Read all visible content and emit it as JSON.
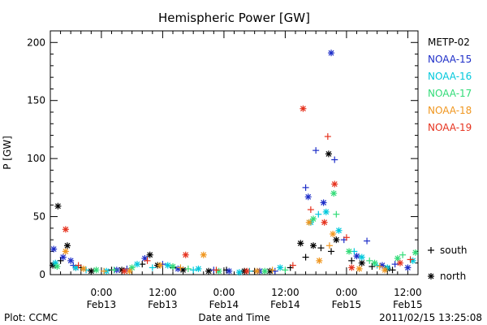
{
  "chart_data": {
    "type": "scatter",
    "title": "Hemispheric Power [GW]",
    "xlabel": "Date and Time",
    "ylabel": "P [GW]",
    "xlim": [
      "2011-02-12T14:00",
      "2011-02-15T14:00"
    ],
    "ylim": [
      0,
      210
    ],
    "yticks": [
      0,
      50,
      100,
      150,
      200
    ],
    "xticks": [
      {
        "t": "2011-02-13T00:00",
        "time": "0:00",
        "date": "Feb13"
      },
      {
        "t": "2011-02-13T12:00",
        "time": "12:00",
        "date": "Feb13"
      },
      {
        "t": "2011-02-14T00:00",
        "time": "0:00",
        "date": "Feb14"
      },
      {
        "t": "2011-02-14T12:00",
        "time": "12:00",
        "date": "Feb14"
      },
      {
        "t": "2011-02-15T00:00",
        "time": "0:00",
        "date": "Feb15"
      },
      {
        "t": "2011-02-15T12:00",
        "time": "12:00",
        "date": "Feb15"
      }
    ],
    "marker_legend": [
      {
        "symbol": "+",
        "label": "south"
      },
      {
        "symbol": "*",
        "label": "north"
      }
    ],
    "series": [
      {
        "name": "METP-02",
        "color": "#000000",
        "points": [
          [
            "2011-02-12T14:30",
            8,
            "north"
          ],
          [
            "2011-02-12T15:30",
            59,
            "north"
          ],
          [
            "2011-02-12T17:20",
            25,
            "north"
          ],
          [
            "2011-02-12T19:00",
            6,
            "north"
          ],
          [
            "2011-02-12T22:00",
            3,
            "north"
          ],
          [
            "2011-02-13T04:00",
            4,
            "north"
          ],
          [
            "2011-02-13T09:30",
            17,
            "north"
          ],
          [
            "2011-02-13T11:00",
            8,
            "north"
          ],
          [
            "2011-02-13T16:00",
            4,
            "north"
          ],
          [
            "2011-02-13T21:00",
            3,
            "north"
          ],
          [
            "2011-02-14T04:00",
            3,
            "north"
          ],
          [
            "2011-02-14T09:00",
            3,
            "north"
          ],
          [
            "2011-02-14T15:00",
            27,
            "north"
          ],
          [
            "2011-02-14T17:30",
            25,
            "north"
          ],
          [
            "2011-02-14T20:30",
            104,
            "north"
          ],
          [
            "2011-02-14T22:00",
            30,
            "north"
          ],
          [
            "2011-02-15T03:00",
            10,
            "north"
          ],
          [
            "2011-02-15T08:00",
            5,
            "north"
          ],
          [
            "2011-02-12T16:00",
            12,
            "south"
          ],
          [
            "2011-02-12T20:00",
            6,
            "south"
          ],
          [
            "2011-02-13T02:00",
            4,
            "south"
          ],
          [
            "2011-02-13T08:00",
            9,
            "south"
          ],
          [
            "2011-02-13T14:00",
            6,
            "south"
          ],
          [
            "2011-02-14T00:30",
            4,
            "south"
          ],
          [
            "2011-02-14T06:00",
            3,
            "south"
          ],
          [
            "2011-02-14T13:00",
            6,
            "south"
          ],
          [
            "2011-02-14T16:00",
            15,
            "south"
          ],
          [
            "2011-02-14T19:00",
            23,
            "south"
          ],
          [
            "2011-02-14T21:00",
            20,
            "south"
          ],
          [
            "2011-02-15T01:00",
            12,
            "south"
          ],
          [
            "2011-02-15T05:00",
            7,
            "south"
          ],
          [
            "2011-02-15T09:00",
            4,
            "south"
          ]
        ]
      },
      {
        "name": "NOAA-15",
        "color": "#1e2ec8",
        "points": [
          [
            "2011-02-12T14:40",
            22,
            "north"
          ],
          [
            "2011-02-12T16:30",
            15,
            "north"
          ],
          [
            "2011-02-12T18:00",
            12,
            "north"
          ],
          [
            "2011-02-13T03:00",
            4,
            "north"
          ],
          [
            "2011-02-13T08:30",
            14,
            "north"
          ],
          [
            "2011-02-13T15:00",
            5,
            "north"
          ],
          [
            "2011-02-14T01:00",
            3,
            "north"
          ],
          [
            "2011-02-14T07:00",
            3,
            "north"
          ],
          [
            "2011-02-14T16:30",
            67,
            "north"
          ],
          [
            "2011-02-14T19:30",
            62,
            "north"
          ],
          [
            "2011-02-14T21:00",
            191,
            "north"
          ],
          [
            "2011-02-15T02:00",
            16,
            "north"
          ],
          [
            "2011-02-15T07:00",
            8,
            "north"
          ],
          [
            "2011-02-15T12:00",
            6,
            "north"
          ],
          [
            "2011-02-12T18:30",
            8,
            "south"
          ],
          [
            "2011-02-13T05:00",
            5,
            "south"
          ],
          [
            "2011-02-13T12:00",
            9,
            "south"
          ],
          [
            "2011-02-13T22:00",
            4,
            "south"
          ],
          [
            "2011-02-14T10:00",
            3,
            "south"
          ],
          [
            "2011-02-14T16:00",
            75,
            "south"
          ],
          [
            "2011-02-14T18:00",
            107,
            "south"
          ],
          [
            "2011-02-14T21:40",
            99,
            "south"
          ],
          [
            "2011-02-14T23:30",
            30,
            "south"
          ],
          [
            "2011-02-15T04:00",
            29,
            "south"
          ],
          [
            "2011-02-15T09:30",
            9,
            "south"
          ]
        ]
      },
      {
        "name": "NOAA-16",
        "color": "#00c8dc",
        "points": [
          [
            "2011-02-12T15:00",
            10,
            "north"
          ],
          [
            "2011-02-12T19:00",
            6,
            "north"
          ],
          [
            "2011-02-13T01:00",
            3,
            "north"
          ],
          [
            "2011-02-13T07:00",
            9,
            "north"
          ],
          [
            "2011-02-13T13:00",
            8,
            "north"
          ],
          [
            "2011-02-13T19:00",
            5,
            "north"
          ],
          [
            "2011-02-14T03:00",
            2,
            "north"
          ],
          [
            "2011-02-14T11:00",
            6,
            "north"
          ],
          [
            "2011-02-14T17:00",
            45,
            "north"
          ],
          [
            "2011-02-14T20:00",
            54,
            "north"
          ],
          [
            "2011-02-14T22:30",
            38,
            "north"
          ],
          [
            "2011-02-15T03:00",
            15,
            "north"
          ],
          [
            "2011-02-15T08:00",
            6,
            "north"
          ],
          [
            "2011-02-15T13:00",
            12,
            "north"
          ],
          [
            "2011-02-12T21:00",
            4,
            "south"
          ],
          [
            "2011-02-13T10:00",
            6,
            "south"
          ],
          [
            "2011-02-13T18:00",
            4,
            "south"
          ],
          [
            "2011-02-14T05:00",
            3,
            "south"
          ],
          [
            "2011-02-14T18:30",
            52,
            "south"
          ],
          [
            "2011-02-15T01:30",
            20,
            "south"
          ],
          [
            "2011-02-15T06:00",
            8,
            "south"
          ]
        ]
      },
      {
        "name": "NOAA-17",
        "color": "#32dc78",
        "points": [
          [
            "2011-02-12T15:20",
            7,
            "north"
          ],
          [
            "2011-02-12T23:00",
            4,
            "north"
          ],
          [
            "2011-02-13T06:00",
            6,
            "north"
          ],
          [
            "2011-02-13T14:00",
            7,
            "north"
          ],
          [
            "2011-02-13T23:00",
            3,
            "north"
          ],
          [
            "2011-02-14T08:00",
            3,
            "north"
          ],
          [
            "2011-02-14T17:30",
            48,
            "north"
          ],
          [
            "2011-02-14T21:30",
            70,
            "north"
          ],
          [
            "2011-02-15T00:30",
            20,
            "north"
          ],
          [
            "2011-02-15T05:30",
            10,
            "north"
          ],
          [
            "2011-02-15T10:00",
            14,
            "north"
          ],
          [
            "2011-02-15T13:30",
            19,
            "north"
          ],
          [
            "2011-02-13T02:30",
            4,
            "south"
          ],
          [
            "2011-02-13T17:00",
            5,
            "south"
          ],
          [
            "2011-02-14T12:00",
            4,
            "south"
          ],
          [
            "2011-02-14T22:00",
            52,
            "south"
          ],
          [
            "2011-02-15T04:30",
            12,
            "south"
          ],
          [
            "2011-02-15T11:00",
            17,
            "south"
          ]
        ]
      },
      {
        "name": "NOAA-18",
        "color": "#f0961e",
        "points": [
          [
            "2011-02-12T17:00",
            20,
            "north"
          ],
          [
            "2011-02-12T20:30",
            5,
            "north"
          ],
          [
            "2011-02-13T05:30",
            3,
            "north"
          ],
          [
            "2011-02-13T11:30",
            8,
            "north"
          ],
          [
            "2011-02-13T20:00",
            17,
            "north"
          ],
          [
            "2011-02-14T06:30",
            3,
            "north"
          ],
          [
            "2011-02-14T16:40",
            45,
            "north"
          ],
          [
            "2011-02-14T18:40",
            12,
            "north"
          ],
          [
            "2011-02-14T21:20",
            35,
            "north"
          ],
          [
            "2011-02-15T02:30",
            5,
            "north"
          ],
          [
            "2011-02-15T07:30",
            4,
            "north"
          ],
          [
            "2011-02-13T00:30",
            3,
            "south"
          ],
          [
            "2011-02-13T15:30",
            6,
            "south"
          ],
          [
            "2011-02-14T09:30",
            4,
            "south"
          ],
          [
            "2011-02-14T20:40",
            25,
            "south"
          ],
          [
            "2011-02-15T06:30",
            7,
            "south"
          ]
        ]
      },
      {
        "name": "NOAA-19",
        "color": "#e6321e",
        "points": [
          [
            "2011-02-12T17:00",
            39,
            "north"
          ],
          [
            "2011-02-13T04:30",
            3,
            "north"
          ],
          [
            "2011-02-13T16:30",
            17,
            "north"
          ],
          [
            "2011-02-14T04:30",
            3,
            "north"
          ],
          [
            "2011-02-14T15:30",
            143,
            "north"
          ],
          [
            "2011-02-14T19:40",
            45,
            "north"
          ],
          [
            "2011-02-14T21:40",
            78,
            "north"
          ],
          [
            "2011-02-15T01:00",
            6,
            "north"
          ],
          [
            "2011-02-15T10:30",
            10,
            "north"
          ],
          [
            "2011-02-12T19:30",
            8,
            "south"
          ],
          [
            "2011-02-13T09:00",
            12,
            "south"
          ],
          [
            "2011-02-13T22:30",
            4,
            "south"
          ],
          [
            "2011-02-14T13:30",
            8,
            "south"
          ],
          [
            "2011-02-14T17:00",
            56,
            "south"
          ],
          [
            "2011-02-14T20:20",
            119,
            "south"
          ],
          [
            "2011-02-15T00:00",
            32,
            "south"
          ],
          [
            "2011-02-15T12:30",
            13,
            "south"
          ]
        ]
      }
    ]
  },
  "footer": {
    "plot_credit": "Plot: CCMC",
    "timestamp": "2011/02/15 13:25:08"
  }
}
